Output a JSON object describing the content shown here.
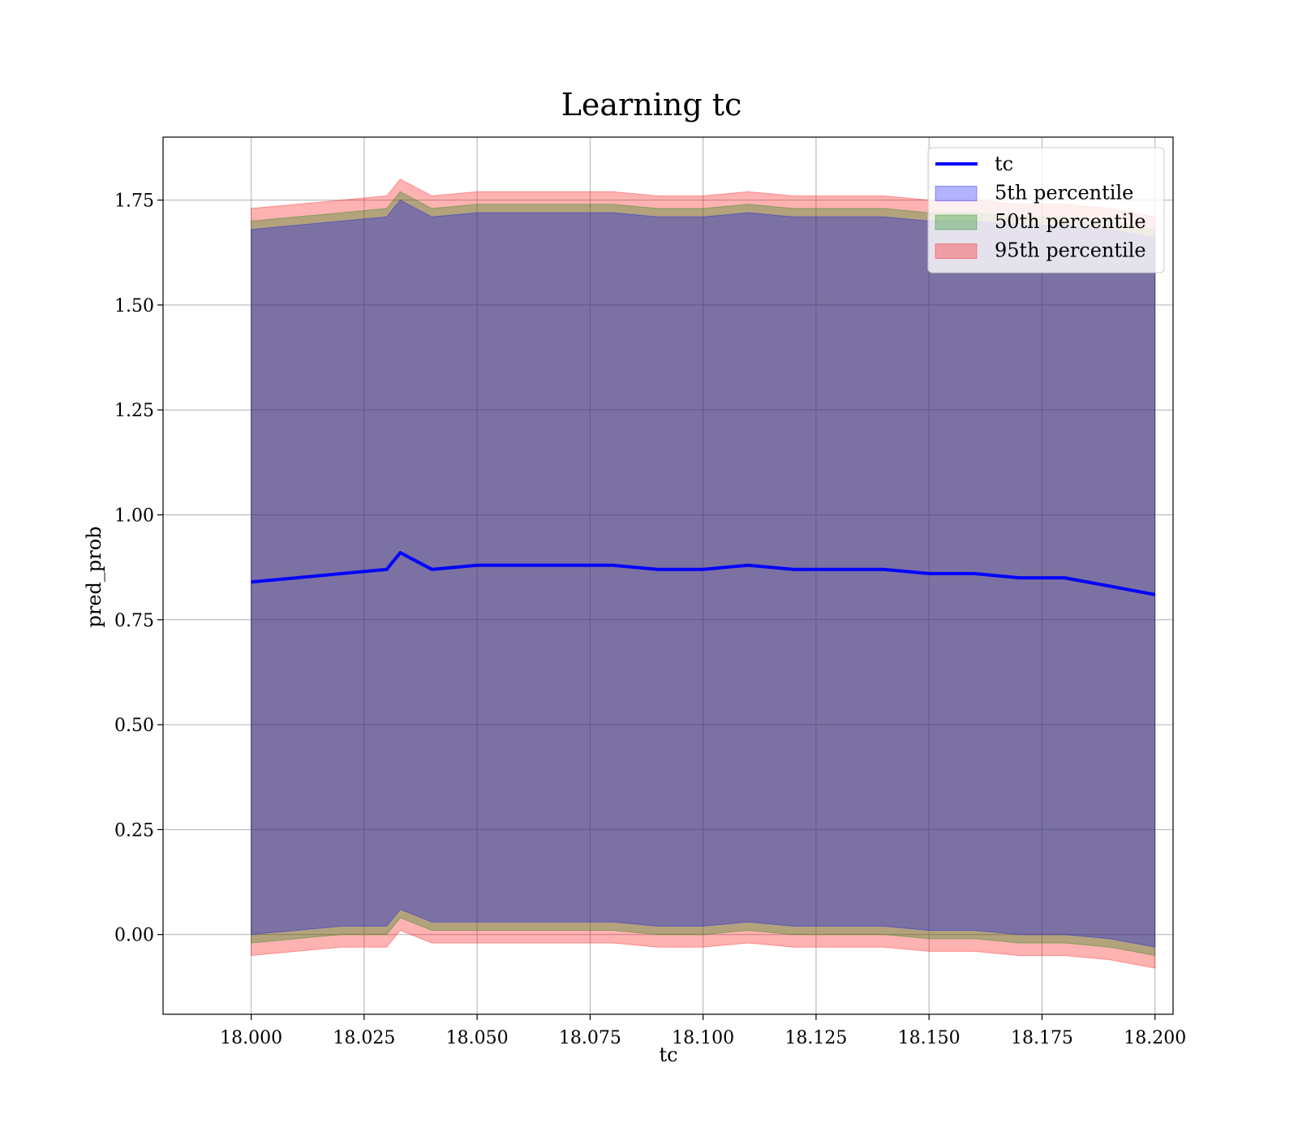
{
  "chart_data": {
    "type": "line",
    "title": "Learning tc",
    "xlabel": "tc",
    "ylabel": "pred_prob",
    "xlim": [
      17.9805,
      18.204
    ],
    "ylim": [
      -0.19,
      1.9
    ],
    "x_ticks": [
      18.0,
      18.025,
      18.05,
      18.075,
      18.1,
      18.125,
      18.15,
      18.175,
      18.2
    ],
    "x_tick_labels": [
      "18.000",
      "18.025",
      "18.050",
      "18.075",
      "18.100",
      "18.125",
      "18.150",
      "18.175",
      "18.200"
    ],
    "y_ticks": [
      0.0,
      0.25,
      0.5,
      0.75,
      1.0,
      1.25,
      1.5,
      1.75
    ],
    "y_tick_labels": [
      "0.00",
      "0.25",
      "0.50",
      "0.75",
      "1.00",
      "1.25",
      "1.50",
      "1.75"
    ],
    "grid": true,
    "legend_position": "top-right",
    "x": [
      18.0,
      18.01,
      18.02,
      18.03,
      18.033,
      18.04,
      18.05,
      18.06,
      18.07,
      18.08,
      18.09,
      18.1,
      18.11,
      18.12,
      18.13,
      18.14,
      18.15,
      18.16,
      18.17,
      18.18,
      18.19,
      18.2
    ],
    "series": [
      {
        "name": "tc",
        "kind": "line",
        "color": "#0000ff",
        "values": [
          0.84,
          0.85,
          0.86,
          0.87,
          0.91,
          0.87,
          0.88,
          0.88,
          0.88,
          0.88,
          0.87,
          0.87,
          0.88,
          0.87,
          0.87,
          0.87,
          0.86,
          0.86,
          0.85,
          0.85,
          0.83,
          0.81
        ]
      },
      {
        "name": "5th percentile",
        "kind": "band",
        "color": "#0000ff",
        "lower": [
          0.0,
          0.01,
          0.02,
          0.02,
          0.06,
          0.03,
          0.03,
          0.03,
          0.03,
          0.03,
          0.02,
          0.02,
          0.03,
          0.02,
          0.02,
          0.02,
          0.01,
          0.01,
          0.0,
          0.0,
          -0.01,
          -0.03
        ],
        "upper": [
          1.68,
          1.69,
          1.7,
          1.71,
          1.75,
          1.71,
          1.72,
          1.72,
          1.72,
          1.72,
          1.71,
          1.71,
          1.72,
          1.71,
          1.71,
          1.71,
          1.7,
          1.7,
          1.69,
          1.69,
          1.68,
          1.66
        ]
      },
      {
        "name": "50th percentile",
        "kind": "band",
        "color": "#008000",
        "lower": [
          -0.02,
          -0.01,
          0.0,
          0.0,
          0.04,
          0.01,
          0.01,
          0.01,
          0.01,
          0.01,
          0.0,
          0.0,
          0.01,
          0.0,
          0.0,
          0.0,
          -0.01,
          -0.01,
          -0.02,
          -0.02,
          -0.03,
          -0.05
        ],
        "upper": [
          1.7,
          1.71,
          1.72,
          1.73,
          1.77,
          1.73,
          1.74,
          1.74,
          1.74,
          1.74,
          1.73,
          1.73,
          1.74,
          1.73,
          1.73,
          1.73,
          1.72,
          1.72,
          1.71,
          1.71,
          1.7,
          1.68
        ]
      },
      {
        "name": "95th percentile",
        "kind": "band",
        "color": "#ff0000",
        "lower": [
          -0.05,
          -0.04,
          -0.03,
          -0.03,
          0.01,
          -0.02,
          -0.02,
          -0.02,
          -0.02,
          -0.02,
          -0.03,
          -0.03,
          -0.02,
          -0.03,
          -0.03,
          -0.03,
          -0.04,
          -0.04,
          -0.05,
          -0.05,
          -0.06,
          -0.08
        ],
        "upper": [
          1.73,
          1.74,
          1.75,
          1.76,
          1.8,
          1.76,
          1.77,
          1.77,
          1.77,
          1.77,
          1.76,
          1.76,
          1.77,
          1.76,
          1.76,
          1.76,
          1.75,
          1.75,
          1.74,
          1.74,
          1.73,
          1.71
        ]
      }
    ]
  }
}
